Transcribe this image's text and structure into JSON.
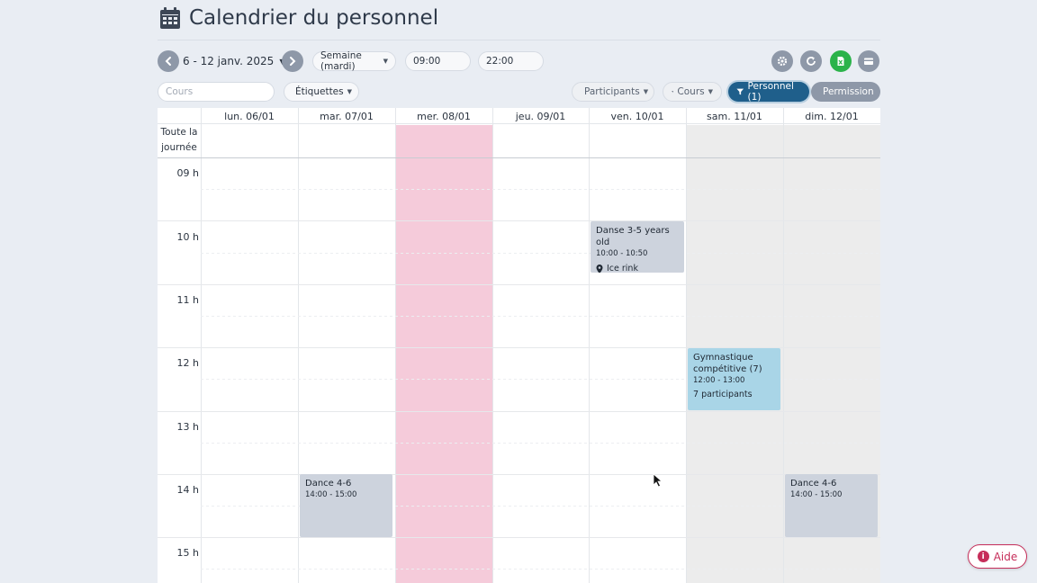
{
  "header": {
    "title": "Calendrier du personnel"
  },
  "toolbar": {
    "date_range": "6 - 12 janv. 2025",
    "view_select": "Semaine (mardi)",
    "start_time": "09:00",
    "end_time": "22:00",
    "search_placeholder": "Cours",
    "tags_label": "Étiquettes"
  },
  "filters": {
    "participants": "Participants",
    "cours": "Cours",
    "personnel": "Personnel (1)",
    "permission": "Permission"
  },
  "calendar": {
    "days": [
      "lun. 06/01",
      "mar. 07/01",
      "mer. 08/01",
      "jeu. 09/01",
      "ven. 10/01",
      "sam. 11/01",
      "dim. 12/01"
    ],
    "all_day_line1": "Toute la",
    "all_day_line2": "journée",
    "hours": [
      "09 h",
      "10 h",
      "11 h",
      "12 h",
      "13 h",
      "14 h",
      "15 h"
    ]
  },
  "events": [
    {
      "title": "Danse 3-5 years old",
      "time": "10:00 - 10:50",
      "location": "Ice rink",
      "day": "ven. 10/01",
      "color": "#cdd3dd"
    },
    {
      "title": "Gymnastique compétitive (7)",
      "time": "12:00 - 13:00",
      "participants": "7 participants",
      "day": "sam. 11/01",
      "color": "#a9d5e7"
    },
    {
      "title": "Dance 4-6",
      "time": "14:00 - 15:00",
      "day": "mar. 07/01",
      "color": "#cdd3dd"
    },
    {
      "title": "Dance 4-6",
      "time": "14:00 - 15:00",
      "day": "dim. 12/01",
      "color": "#cdd3dd"
    }
  ],
  "colors": {
    "highlight_day": "#f5cbda",
    "weekend": "#ececec",
    "primary": "#1f5f8b",
    "success": "#2bb34a",
    "help": "#c62e5a"
  },
  "help": {
    "label": "Aide"
  }
}
